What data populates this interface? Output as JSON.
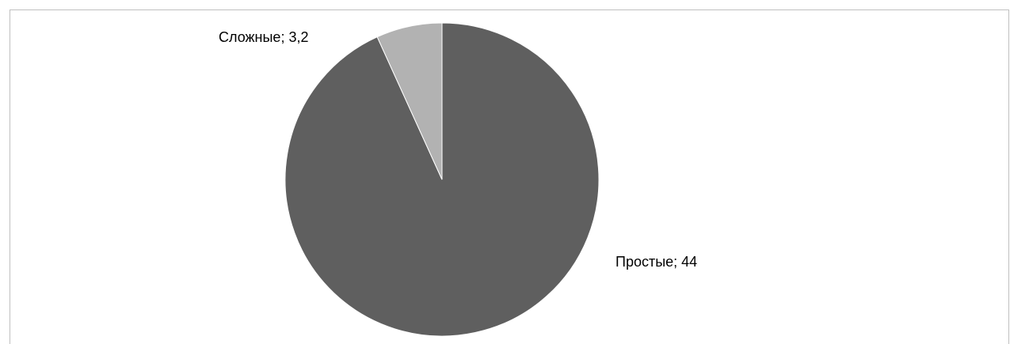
{
  "chart_data": {
    "type": "pie",
    "title": "",
    "slices": [
      {
        "label": "Простые",
        "value": 44,
        "value_label": "44",
        "color": "#5f5f5f"
      },
      {
        "label": "Сложные",
        "value": 3.2,
        "value_label": "3,2",
        "color": "#b2b2b2"
      }
    ],
    "start_angle_deg": 0,
    "direction": "clockwise",
    "legend": "none",
    "data_labels": "category; value"
  }
}
